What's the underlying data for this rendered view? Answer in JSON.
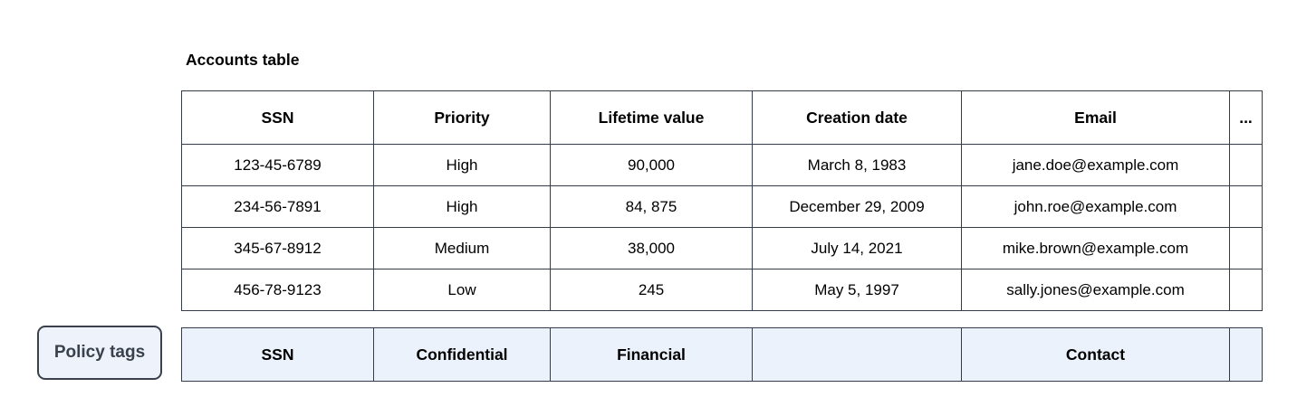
{
  "accounts_table": {
    "title": "Accounts table",
    "columns": [
      "SSN",
      "Priority",
      "Lifetime value",
      "Creation date",
      "Email",
      "..."
    ],
    "rows": [
      [
        "123-45-6789",
        "High",
        "90,000",
        "March 8, 1983",
        "jane.doe@example.com",
        ""
      ],
      [
        "234-56-7891",
        "High",
        "84, 875",
        "December 29, 2009",
        "john.roe@example.com",
        ""
      ],
      [
        "345-67-8912",
        "Medium",
        "38,000",
        "July 14, 2021",
        "mike.brown@example.com",
        ""
      ],
      [
        "456-78-9123",
        "Low",
        "245",
        "May 5, 1997",
        "sally.jones@example.com",
        ""
      ]
    ]
  },
  "policy_tags": {
    "label": "Policy tags",
    "tags": [
      "SSN",
      "Confidential",
      "Financial",
      "",
      "Contact",
      ""
    ]
  },
  "colors": {
    "border": "#353C49",
    "policy_row_background": "#EBF2FC",
    "policy_button_background": "#EEF3FB",
    "policy_button_text": "#3A414C",
    "table_background": "#FFFFFF",
    "text": "#000000"
  }
}
